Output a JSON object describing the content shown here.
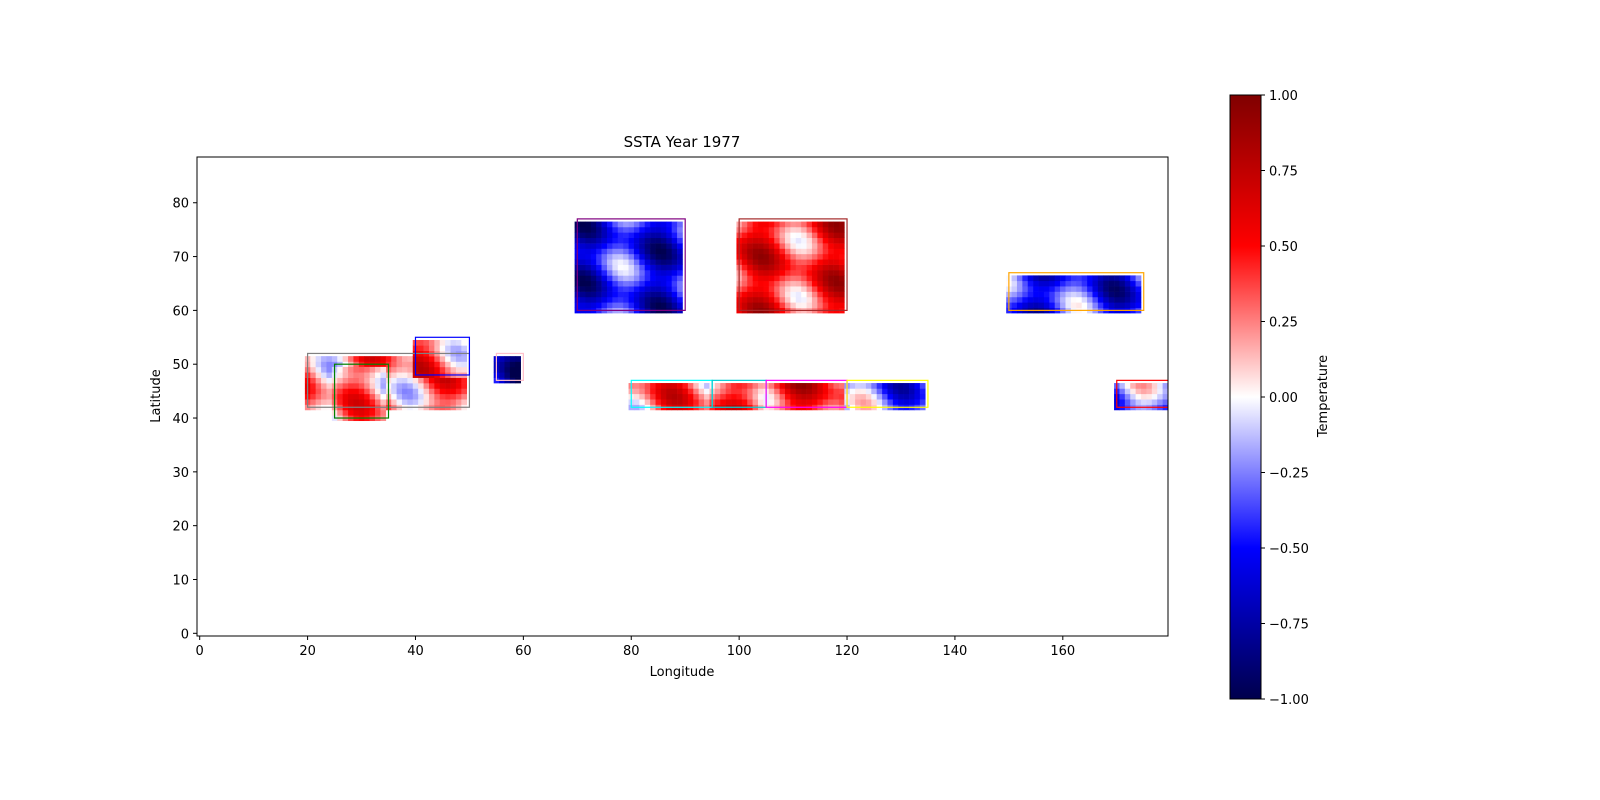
{
  "chart_data": {
    "type": "heatmap",
    "title": "SSTA Year 1977",
    "xlabel": "Longitude",
    "ylabel": "Latitude",
    "xlim": [
      -0.5,
      179.5
    ],
    "ylim": [
      -0.5,
      88.5
    ],
    "x_ticks": [
      0,
      20,
      40,
      60,
      80,
      100,
      120,
      140,
      160
    ],
    "y_ticks": [
      0,
      10,
      20,
      30,
      40,
      50,
      60,
      70,
      80
    ],
    "grid": false,
    "colormap": "seismic",
    "colorbar": {
      "label": "Temperature",
      "range": [
        -1.0,
        1.0
      ],
      "ticks": [
        "1.00",
        "0.75",
        "0.50",
        "0.25",
        "0.00",
        "−0.25",
        "−0.50",
        "−0.75",
        "−1.00"
      ]
    },
    "regions": [
      {
        "lon": [
          20,
          50
        ],
        "lat": [
          42,
          52
        ],
        "color": "#808080",
        "anomaly": 0.25
      },
      {
        "lon": [
          25,
          35
        ],
        "lat": [
          40,
          50
        ],
        "color": "#008000",
        "anomaly": 0.2
      },
      {
        "lon": [
          40,
          50
        ],
        "lat": [
          48,
          55
        ],
        "color": "#0000ff",
        "anomaly": 0.3
      },
      {
        "lon": [
          55,
          60
        ],
        "lat": [
          47,
          52
        ],
        "color": "#ffc0cb",
        "anomaly": -0.6
      },
      {
        "lon": [
          70,
          90
        ],
        "lat": [
          60,
          77
        ],
        "color": "#800080",
        "anomaly": -0.5
      },
      {
        "lon": [
          100,
          120
        ],
        "lat": [
          60,
          77
        ],
        "color": "#a52a2a",
        "anomaly": 0.45
      },
      {
        "lon": [
          80,
          95
        ],
        "lat": [
          42,
          47
        ],
        "color": "#00ffff",
        "anomaly": 0.3
      },
      {
        "lon": [
          95,
          105
        ],
        "lat": [
          42,
          47
        ],
        "color": "#00ced1",
        "anomaly": 0.35
      },
      {
        "lon": [
          105,
          120
        ],
        "lat": [
          42,
          47
        ],
        "color": "#ff00ff",
        "anomaly": 0.45
      },
      {
        "lon": [
          120,
          135
        ],
        "lat": [
          42,
          47
        ],
        "color": "#ffff00",
        "anomaly": -0.3
      },
      {
        "lon": [
          150,
          175
        ],
        "lat": [
          60,
          67
        ],
        "color": "#ffa500",
        "anomaly": -0.45
      },
      {
        "lon": [
          170,
          180
        ],
        "lat": [
          42,
          47
        ],
        "color": "#ff0000",
        "anomaly": -0.25
      }
    ]
  }
}
